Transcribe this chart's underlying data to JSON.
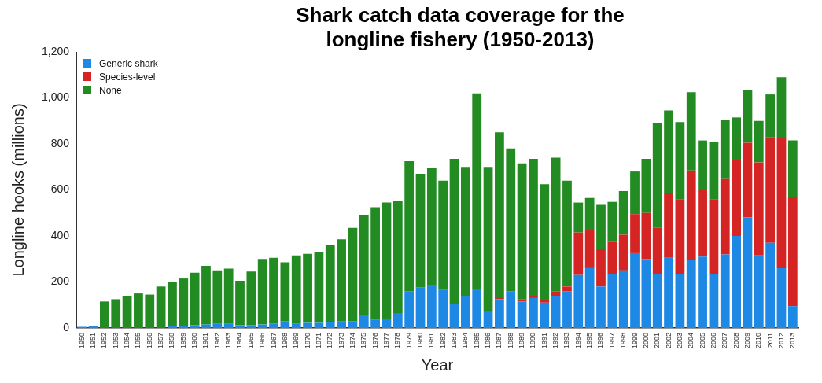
{
  "chart_data": {
    "type": "bar",
    "title": "Shark catch data coverage for the longline fishery (1950-2013)",
    "xlabel": "Year",
    "ylabel": "Longline hooks (millions)",
    "categories": [
      "1950",
      "1951",
      "1952",
      "1953",
      "1954",
      "1955",
      "1956",
      "1957",
      "1958",
      "1959",
      "1960",
      "1961",
      "1962",
      "1963",
      "1964",
      "1965",
      "1966",
      "1967",
      "1968",
      "1969",
      "1970",
      "1971",
      "1972",
      "1973",
      "1974",
      "1975",
      "1976",
      "1977",
      "1978",
      "1979",
      "1980",
      "1981",
      "1982",
      "1983",
      "1984",
      "1985",
      "1986",
      "1987",
      "1988",
      "1989",
      "1990",
      "1991",
      "1992",
      "1993",
      "1994",
      "1995",
      "1996",
      "1997",
      "1998",
      "1999",
      "2000",
      "2001",
      "2002",
      "2003",
      "2004",
      "2005",
      "2006",
      "2007",
      "2008",
      "2009",
      "2010",
      "2011",
      "2012",
      "2013"
    ],
    "stacked": true,
    "legend": "top left",
    "grid": false,
    "ylim": [
      0,
      1200
    ],
    "yticks": [
      0,
      200,
      400,
      600,
      {
        "value": 800,
        "label": "800"
      },
      {
        "value": 1000,
        "label": "1,000"
      },
      {
        "value": 1200,
        "label": "1,200"
      }
    ],
    "series": [
      {
        "name": "Generic shark",
        "color": "#1e88e5",
        "values": [
          5,
          8,
          0,
          0,
          0,
          0,
          0,
          0,
          10,
          10,
          12,
          15,
          18,
          18,
          12,
          12,
          15,
          18,
          30,
          20,
          22,
          22,
          25,
          28,
          30,
          55,
          35,
          40,
          65,
          160,
          175,
          185,
          165,
          105,
          140,
          170,
          75,
          125,
          160,
          115,
          130,
          110,
          140,
          160,
          230,
          260,
          180,
          235,
          250,
          325,
          300,
          235,
          305,
          235,
          295,
          310,
          235,
          320,
          400,
          480,
          315,
          370,
          260,
          95
        ]
      },
      {
        "name": "Species-level",
        "color": "#d42424",
        "values": [
          0,
          0,
          0,
          0,
          0,
          0,
          0,
          0,
          0,
          0,
          0,
          0,
          0,
          0,
          0,
          0,
          0,
          0,
          0,
          0,
          0,
          0,
          0,
          0,
          0,
          0,
          0,
          0,
          0,
          0,
          0,
          0,
          0,
          0,
          0,
          0,
          0,
          5,
          0,
          10,
          8,
          12,
          18,
          20,
          185,
          165,
          165,
          140,
          155,
          170,
          200,
          200,
          280,
          325,
          390,
          290,
          325,
          330,
          330,
          325,
          405,
          460,
          565,
          475
        ]
      },
      {
        "name": "None",
        "color": "#228b22",
        "values": [
          0,
          0,
          115,
          125,
          140,
          150,
          145,
          180,
          190,
          205,
          228,
          255,
          232,
          240,
          193,
          233,
          285,
          287,
          255,
          295,
          300,
          306,
          335,
          357,
          405,
          435,
          490,
          505,
          485,
          565,
          495,
          510,
          475,
          630,
          560,
          850,
          625,
          720,
          620,
          590,
          597,
          503,
          582,
          460,
          130,
          140,
          190,
          173,
          190,
          185,
          235,
          455,
          360,
          335,
          340,
          215,
          250,
          255,
          185,
          230,
          180,
          185,
          265,
          245
        ]
      }
    ]
  }
}
